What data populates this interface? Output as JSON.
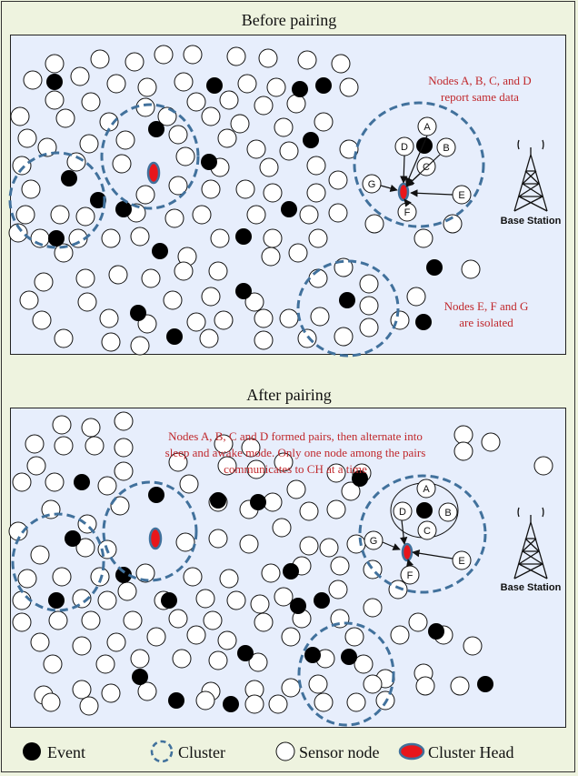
{
  "panels": [
    {
      "title": "Before pairing",
      "annotation_top": [
        "Nodes A, B, C, and D",
        "report same data"
      ],
      "annotation_bottom": [
        "Nodes E, F and G",
        "are isolated"
      ],
      "base_station_label": "Base Station"
    },
    {
      "title": "After pairing",
      "annotation_top": [
        "Nodes A, B, C and D formed pairs, then alternate into",
        "sleep and awake mode. Only one node among the pairs",
        "communicates to CH at a time"
      ],
      "base_station_label": "Base Station"
    }
  ],
  "node_labels": [
    "A",
    "B",
    "C",
    "D",
    "E",
    "F",
    "G"
  ],
  "legend": {
    "event": "Event",
    "cluster": "Cluster",
    "sensor_node": "Sensor node",
    "cluster_head": "Cluster Head"
  },
  "colors": {
    "annotation": "#c0282c",
    "cluster_stroke": "#41719c",
    "cluster_head_fill": "#e8161b",
    "event_fill": "#000000",
    "panel_bg": "#e7eefc",
    "page_bg": "#eef3df"
  }
}
